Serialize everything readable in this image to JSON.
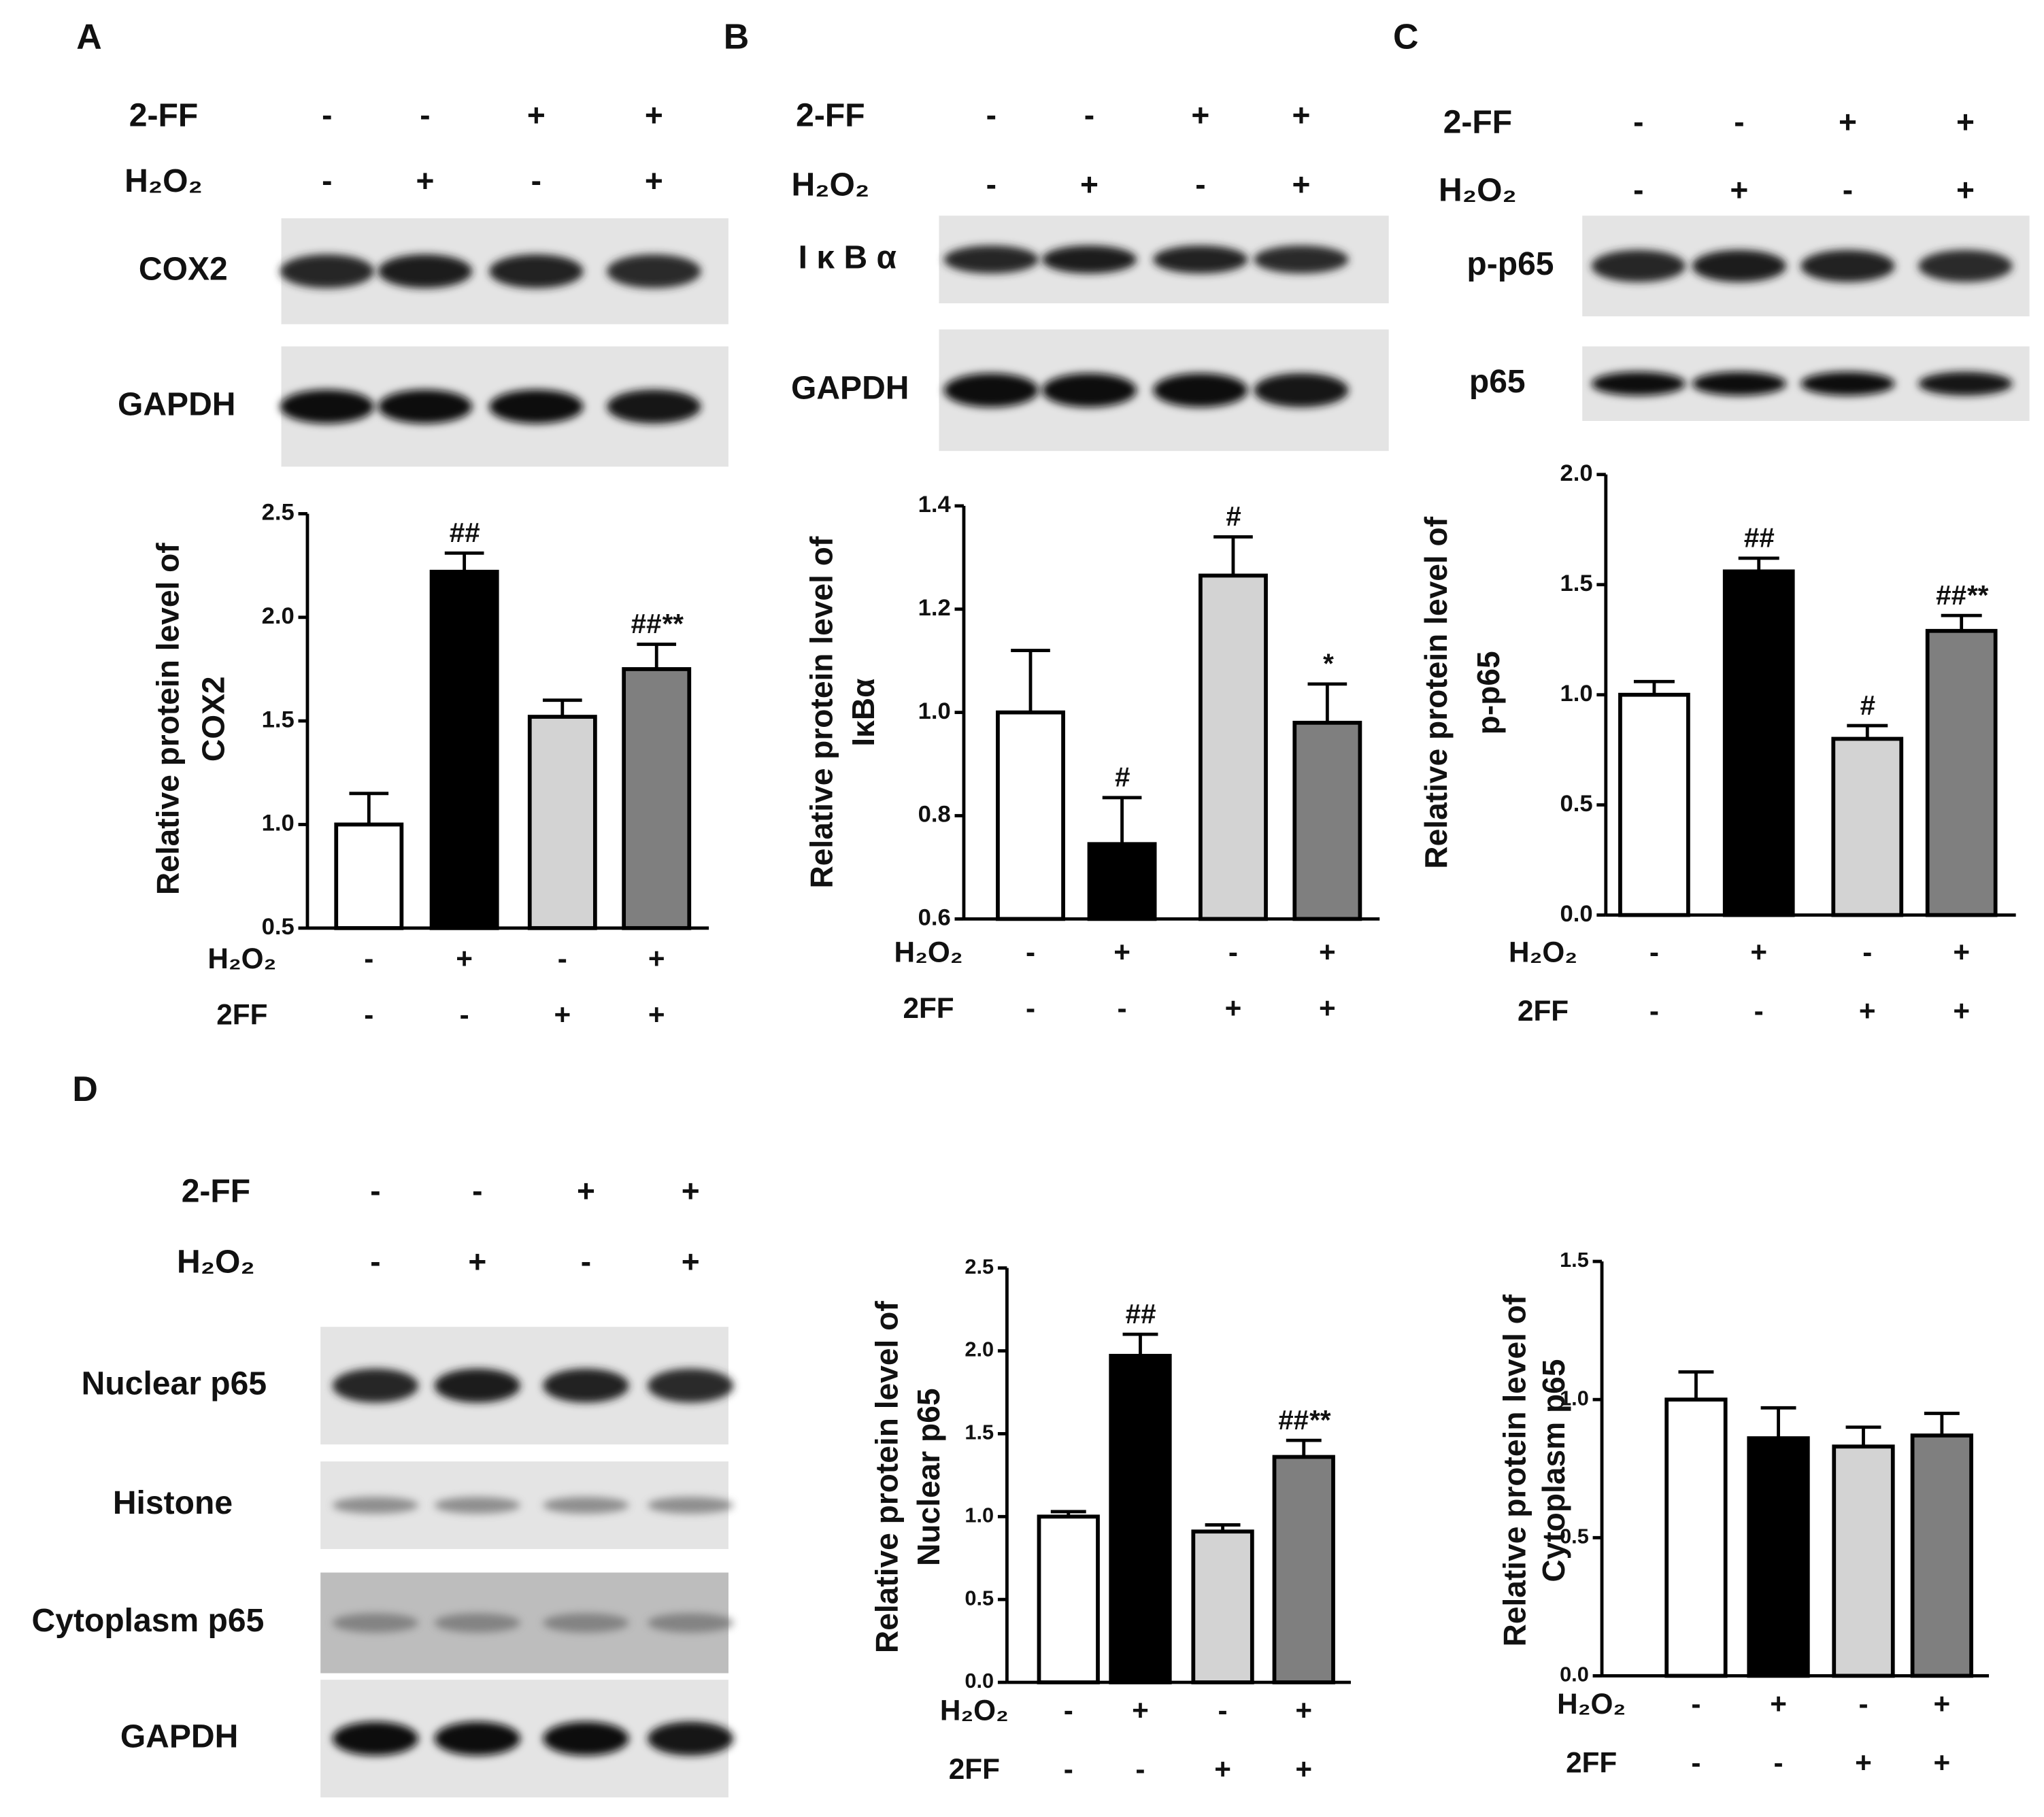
{
  "panels": [
    {
      "letter": "A",
      "header": [
        {
          "name": "2-FF",
          "signs": [
            "-",
            "-",
            "+",
            "+"
          ]
        },
        {
          "name": "H₂O₂",
          "signs": [
            "-",
            "+",
            "-",
            "+"
          ]
        }
      ],
      "blots": [
        "COX2",
        "GAPDH"
      ]
    },
    {
      "letter": "B",
      "header": [
        {
          "name": "2-FF",
          "signs": [
            "-",
            "-",
            "+",
            "+"
          ]
        },
        {
          "name": "H₂O₂",
          "signs": [
            "-",
            "+",
            "-",
            "+"
          ]
        }
      ],
      "blots": [
        "I κ B α",
        "GAPDH"
      ]
    },
    {
      "letter": "C",
      "header": [
        {
          "name": "2-FF",
          "signs": [
            "-",
            "-",
            "+",
            "+"
          ]
        },
        {
          "name": "H₂O₂",
          "signs": [
            "-",
            "+",
            "-",
            "+"
          ]
        }
      ],
      "blots": [
        "p-p65",
        "p65"
      ]
    },
    {
      "letter": "D",
      "header": [
        {
          "name": "2-FF",
          "signs": [
            "-",
            "-",
            "+",
            "+"
          ]
        },
        {
          "name": "H₂O₂",
          "signs": [
            "-",
            "+",
            "-",
            "+"
          ]
        }
      ],
      "blots": [
        "Nuclear p65",
        "Histone",
        "Cytoplasm p65",
        "GAPDH"
      ]
    }
  ],
  "chart_data": [
    {
      "type": "bar",
      "ylabel": [
        "Relative protein level of",
        "COX2"
      ],
      "ylim": [
        0.5,
        2.5
      ],
      "yticks": [
        0.5,
        {
          "value": 1,
          "label": "1.0"
        },
        1.5,
        {
          "value": 2,
          "label": "2.0"
        },
        2.5
      ],
      "values": [
        1.0,
        2.22,
        1.52,
        1.75
      ],
      "errors": [
        0.15,
        0.09,
        0.08,
        0.12
      ],
      "colors": [
        "#ffffff",
        "#000000",
        "#d3d3d3",
        "#7f7f7f"
      ],
      "annotations": [
        null,
        "##",
        null,
        "##**"
      ],
      "treatments": [
        {
          "name": "H₂O₂",
          "signs": [
            "-",
            "+",
            "-",
            "+"
          ]
        },
        {
          "name": "2FF",
          "signs": [
            "-",
            "-",
            "+",
            "+"
          ]
        }
      ]
    },
    {
      "type": "bar",
      "ylabel": [
        "Relative protein level of",
        "IκBα"
      ],
      "ylim": [
        0.6,
        1.4
      ],
      "yticks": [
        0.6,
        0.8,
        {
          "value": 1,
          "label": "1.0"
        },
        1.2,
        1.4
      ],
      "values": [
        1.0,
        0.745,
        1.265,
        0.98
      ],
      "errors": [
        0.12,
        0.09,
        0.075,
        0.075
      ],
      "colors": [
        "#ffffff",
        "#000000",
        "#d3d3d3",
        "#7f7f7f"
      ],
      "annotations": [
        null,
        "#",
        "#",
        "*"
      ],
      "treatments": [
        {
          "name": "H₂O₂",
          "signs": [
            "-",
            "+",
            "-",
            "+"
          ]
        },
        {
          "name": "2FF",
          "signs": [
            "-",
            "-",
            "+",
            "+"
          ]
        }
      ]
    },
    {
      "type": "bar",
      "ylabel": [
        "Relative protein level of",
        "p-p65"
      ],
      "ylim": [
        0,
        2
      ],
      "yticks": [
        {
          "value": 0,
          "label": "0.0"
        },
        0.5,
        {
          "value": 1,
          "label": "1.0"
        },
        1.5,
        {
          "value": 2,
          "label": "2.0"
        }
      ],
      "values": [
        1.0,
        1.56,
        0.8,
        1.29
      ],
      "errors": [
        0.06,
        0.06,
        0.06,
        0.07
      ],
      "colors": [
        "#ffffff",
        "#000000",
        "#d3d3d3",
        "#7f7f7f"
      ],
      "annotations": [
        null,
        "##",
        "#",
        "##**"
      ],
      "treatments": [
        {
          "name": "H₂O₂",
          "signs": [
            "-",
            "+",
            "-",
            "+"
          ]
        },
        {
          "name": "2FF",
          "signs": [
            "-",
            "-",
            "+",
            "+"
          ]
        }
      ]
    },
    {
      "type": "bar",
      "ylabel": [
        "Relative protein level of",
        "Nuclear p65"
      ],
      "ylim": [
        0,
        2.5
      ],
      "yticks": [
        {
          "value": 0,
          "label": "0.0"
        },
        0.5,
        {
          "value": 1,
          "label": "1.0"
        },
        1.5,
        {
          "value": 2,
          "label": "2.0"
        },
        2.5
      ],
      "values": [
        1.0,
        1.97,
        0.91,
        1.36
      ],
      "errors": [
        0.03,
        0.13,
        0.04,
        0.1
      ],
      "colors": [
        "#ffffff",
        "#000000",
        "#d3d3d3",
        "#7f7f7f"
      ],
      "annotations": [
        null,
        "##",
        null,
        "##**"
      ],
      "treatments": [
        {
          "name": "H₂O₂",
          "signs": [
            "-",
            "+",
            "-",
            "+"
          ]
        },
        {
          "name": "2FF",
          "signs": [
            "-",
            "-",
            "+",
            "+"
          ]
        }
      ]
    },
    {
      "type": "bar",
      "ylabel": [
        "Relative protein level of",
        "Cytoplasm p65"
      ],
      "ylim": [
        0,
        1.5
      ],
      "yticks": [
        {
          "value": 0,
          "label": "0.0"
        },
        0.5,
        {
          "value": 1,
          "label": "1.0"
        },
        1.5
      ],
      "values": [
        1.0,
        0.86,
        0.83,
        0.87
      ],
      "errors": [
        0.1,
        0.11,
        0.07,
        0.08
      ],
      "colors": [
        "#ffffff",
        "#000000",
        "#d3d3d3",
        "#7f7f7f"
      ],
      "annotations": [
        null,
        null,
        null,
        null
      ],
      "treatments": [
        {
          "name": "H₂O₂",
          "signs": [
            "-",
            "+",
            "-",
            "+"
          ]
        },
        {
          "name": "2FF",
          "signs": [
            "-",
            "-",
            "+",
            "+"
          ]
        }
      ]
    }
  ]
}
